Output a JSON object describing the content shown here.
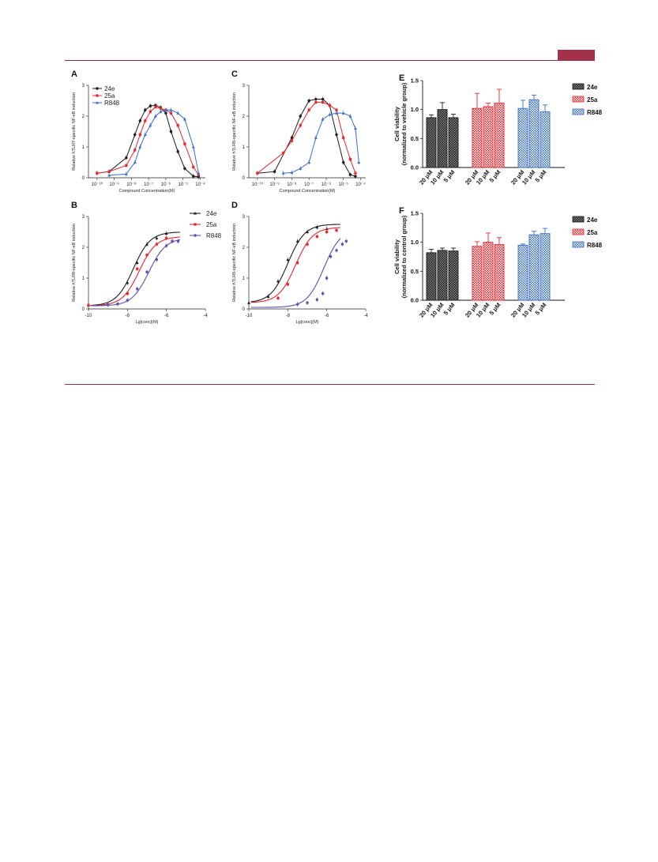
{
  "colors": {
    "24e": "#1a1a1a",
    "25a": "#e8262d",
    "R848": "#3a6fc4",
    "R848_curve_BD": "#5b4fb0",
    "header_rule": "#a3314a"
  },
  "chart_data": [
    {
      "panel": "A",
      "type": "line",
      "ylabel": "Relative hTLR7-specific NF-κB induction",
      "xlabel": "Compound Concentration(M)",
      "xscale": "log",
      "xlim": [
        -10.5,
        -3.7
      ],
      "ylim": [
        0,
        3
      ],
      "xticks": [
        "10⁻¹⁰",
        "10⁻⁹",
        "10⁻⁸",
        "10⁻⁷",
        "10⁻⁶",
        "10⁻⁵",
        "10⁻⁴"
      ],
      "xtick_values": [
        -10,
        -9,
        -8,
        -7,
        -6,
        -5,
        -4
      ],
      "yticks": [
        "0",
        "1",
        "2",
        "3"
      ],
      "ytick_values": [
        0,
        1,
        2,
        3
      ],
      "legend_position": "top-left",
      "series": [
        {
          "name": "24e",
          "key": "24e",
          "marker": "circle",
          "x": [
            -10,
            -9.3,
            -8.3,
            -7.8,
            -7.5,
            -7.2,
            -6.9,
            -6.6,
            -6.3,
            -6.0,
            -5.7,
            -5.3,
            -4.9,
            -4.4,
            -4.1
          ],
          "y": [
            0.15,
            0.2,
            0.65,
            1.4,
            1.85,
            2.2,
            2.33,
            2.35,
            2.28,
            2.1,
            1.5,
            0.85,
            0.3,
            0.05,
            0.03
          ]
        },
        {
          "name": "25a",
          "key": "25a",
          "marker": "square",
          "x": [
            -10,
            -9.3,
            -8.3,
            -7.8,
            -7.5,
            -7.2,
            -6.9,
            -6.6,
            -6.3,
            -6.0,
            -5.7,
            -5.3,
            -4.9,
            -4.4,
            -4.1
          ],
          "y": [
            0.15,
            0.2,
            0.4,
            0.9,
            1.4,
            1.85,
            2.15,
            2.3,
            2.25,
            2.2,
            2.1,
            1.7,
            1.1,
            0.35,
            0.1
          ]
        },
        {
          "name": "R848",
          "key": "R848",
          "marker": "triangle",
          "x": [
            -9.3,
            -8.3,
            -7.8,
            -7.5,
            -7.2,
            -6.9,
            -6.6,
            -6.3,
            -6.0,
            -5.7,
            -5.3,
            -4.9,
            -4.4,
            -4.1
          ],
          "y": [
            0.08,
            0.12,
            0.5,
            1.0,
            1.4,
            1.7,
            2.0,
            2.15,
            2.2,
            2.2,
            2.1,
            1.9,
            1.0,
            0.15
          ]
        }
      ]
    },
    {
      "panel": "B",
      "type": "scatter",
      "ylabel": "Relative hTLR8-specific NF-κB induction",
      "xlabel": "Lg[conc](M)",
      "xlim": [
        -10,
        -4
      ],
      "ylim": [
        0,
        3
      ],
      "xticks": [
        "-10",
        "-8",
        "-6",
        "-4"
      ],
      "xtick_values": [
        -10,
        -8,
        -6,
        -4
      ],
      "yticks": [
        "0",
        "1",
        "2",
        "3"
      ],
      "ytick_values": [
        0,
        1,
        2,
        3
      ],
      "legend_position": "top-right",
      "series": [
        {
          "name": "24e",
          "key": "24e",
          "marker": "triangle",
          "x": [
            -10,
            -9,
            -8,
            -7.5,
            -7,
            -6.5,
            -6
          ],
          "y": [
            0.12,
            0.15,
            0.85,
            1.5,
            2.1,
            2.3,
            2.45
          ],
          "fit": {
            "bottom": 0.1,
            "top": 2.5,
            "ec50": -7.7,
            "hill": 1.0
          }
        },
        {
          "name": "25a",
          "key": "25a",
          "marker": "square",
          "x": [
            -10,
            -9,
            -8,
            -7.5,
            -7,
            -6.5,
            -6,
            -5.7
          ],
          "y": [
            0.12,
            0.14,
            0.5,
            1.3,
            1.75,
            2.1,
            2.3,
            2.2
          ],
          "fit": {
            "bottom": 0.1,
            "top": 2.35,
            "ec50": -7.4,
            "hill": 1.0
          }
        },
        {
          "name": "R848",
          "key": "R848",
          "marker": "circle",
          "x": [
            -9,
            -8.5,
            -8,
            -7.5,
            -7,
            -6.5,
            -6,
            -5.7,
            -5.4
          ],
          "y": [
            0.14,
            0.16,
            0.28,
            0.65,
            1.2,
            1.6,
            2.05,
            2.2,
            2.2
          ],
          "fit": {
            "bottom": 0.1,
            "top": 2.3,
            "ec50": -6.9,
            "hill": 1.0
          }
        }
      ]
    },
    {
      "panel": "C",
      "type": "line",
      "ylabel": "Relative hTLR8-specific NF-κB induction",
      "xlabel": "Compound Concentration(M)",
      "xscale": "log",
      "xlim": [
        -10.5,
        -3.7
      ],
      "ylim": [
        0,
        3
      ],
      "xticks": [
        "10⁻¹⁰",
        "10⁻⁹",
        "10⁻⁸",
        "10⁻⁷",
        "10⁻⁶",
        "10⁻⁵",
        "10⁻⁴"
      ],
      "xtick_values": [
        -10,
        -9,
        -8,
        -7,
        -6,
        -5,
        -4
      ],
      "yticks": [
        "0",
        "1",
        "2",
        "3"
      ],
      "ytick_values": [
        0,
        1,
        2,
        3
      ],
      "series": [
        {
          "name": "24e",
          "key": "24e",
          "marker": "circle",
          "x": [
            -10,
            -9.0,
            -8.0,
            -7.5,
            -7.0,
            -6.6,
            -6.2,
            -5.8,
            -5.4,
            -5.0,
            -4.6,
            -4.3
          ],
          "y": [
            0.15,
            0.2,
            1.3,
            2.0,
            2.5,
            2.55,
            2.55,
            2.35,
            1.4,
            0.5,
            0.1,
            0.05
          ]
        },
        {
          "name": "25a",
          "key": "25a",
          "marker": "square",
          "x": [
            -10,
            -8.5,
            -8.0,
            -7.5,
            -7.0,
            -6.6,
            -6.2,
            -5.8,
            -5.4,
            -5.0,
            -4.6,
            -4.3
          ],
          "y": [
            0.15,
            0.8,
            1.2,
            1.7,
            2.2,
            2.45,
            2.45,
            2.35,
            2.2,
            1.3,
            0.6,
            0.15
          ]
        },
        {
          "name": "R848",
          "key": "R848",
          "marker": "triangle",
          "x": [
            -8.5,
            -8.0,
            -7.5,
            -7.0,
            -6.6,
            -6.2,
            -5.8,
            -5.4,
            -5.0,
            -4.6,
            -4.3,
            -4.1
          ],
          "y": [
            0.15,
            0.17,
            0.3,
            0.5,
            1.3,
            1.9,
            2.05,
            2.1,
            2.1,
            2.0,
            1.6,
            0.5
          ]
        }
      ]
    },
    {
      "panel": "D",
      "type": "scatter",
      "ylabel": "Relative hTLR8-specific NF-κB induction",
      "xlabel": "Lg[conc](M)",
      "xlim": [
        -10,
        -4
      ],
      "ylim": [
        0,
        3
      ],
      "xticks": [
        "-10",
        "-8",
        "-6",
        "-4"
      ],
      "xtick_values": [
        -10,
        -8,
        -6,
        -4
      ],
      "yticks": [
        "0",
        "1",
        "2",
        "3"
      ],
      "ytick_values": [
        0,
        1,
        2,
        3
      ],
      "series": [
        {
          "name": "24e",
          "key": "24e",
          "marker": "triangle",
          "x": [
            -10,
            -9,
            -8.5,
            -8,
            -7.5,
            -7,
            -6.5,
            -6
          ],
          "y": [
            0.2,
            0.4,
            0.9,
            1.6,
            2.2,
            2.5,
            2.65,
            2.6
          ],
          "fit": {
            "bottom": 0.2,
            "top": 2.75,
            "ec50": -8.0,
            "hill": 1.0
          }
        },
        {
          "name": "25a",
          "key": "25a",
          "marker": "square",
          "x": [
            -8.5,
            -8,
            -7.5,
            -7,
            -6.5,
            -6,
            -5.5
          ],
          "y": [
            0.35,
            0.8,
            1.5,
            2.1,
            2.35,
            2.5,
            2.55
          ],
          "fit": {
            "bottom": 0.2,
            "top": 2.65,
            "ec50": -7.6,
            "hill": 1.0
          }
        },
        {
          "name": "R848",
          "key": "R848",
          "marker": "circle",
          "x": [
            -7.5,
            -7,
            -6.5,
            -6.2,
            -6,
            -5.8,
            -5.5,
            -5.2,
            -5
          ],
          "y": [
            0.15,
            0.2,
            0.3,
            0.5,
            1.0,
            1.7,
            1.9,
            2.1,
            2.2
          ],
          "fit": {
            "bottom": 0.05,
            "top": 2.6,
            "ec50": -6.15,
            "hill": 1.0
          }
        }
      ]
    },
    {
      "panel": "E",
      "type": "bar",
      "ylabel": "Cell viability\n(normalized to vehicle group)",
      "ylim": [
        0,
        1.5
      ],
      "yticks": [
        "0.0",
        "0.5",
        "1.0",
        "1.5"
      ],
      "ytick_values": [
        0,
        0.5,
        1.0,
        1.5
      ],
      "categories": [
        "20 μM",
        "10 μM",
        "5 μM"
      ],
      "legend_position": "right",
      "series": [
        {
          "name": "24e",
          "key": "24e",
          "values": [
            0.86,
            1.0,
            0.86
          ],
          "errors": [
            0.05,
            0.12,
            0.06
          ]
        },
        {
          "name": "25a",
          "key": "25a",
          "values": [
            1.02,
            1.05,
            1.11
          ],
          "errors": [
            0.26,
            0.06,
            0.24
          ]
        },
        {
          "name": "R848",
          "key": "R848",
          "values": [
            1.02,
            1.17,
            0.96
          ],
          "errors": [
            0.14,
            0.08,
            0.12
          ]
        }
      ]
    },
    {
      "panel": "F",
      "type": "bar",
      "ylabel": "Cell viability\n(normalized to control group)",
      "ylim": [
        0,
        1.5
      ],
      "yticks": [
        "0.0",
        "0.5",
        "1.0",
        "1.5"
      ],
      "ytick_values": [
        0,
        0.5,
        1.0,
        1.5
      ],
      "categories": [
        "20 μM",
        "10 μM",
        "5 μM"
      ],
      "legend_position": "right",
      "series": [
        {
          "name": "24e",
          "key": "24e",
          "values": [
            0.82,
            0.86,
            0.85
          ],
          "errors": [
            0.06,
            0.04,
            0.05
          ]
        },
        {
          "name": "25a",
          "key": "25a",
          "values": [
            0.93,
            1.0,
            0.96
          ],
          "errors": [
            0.08,
            0.16,
            0.12
          ]
        },
        {
          "name": "R848",
          "key": "R848",
          "values": [
            0.95,
            1.13,
            1.15
          ],
          "errors": [
            0.02,
            0.06,
            0.09
          ]
        }
      ]
    }
  ]
}
